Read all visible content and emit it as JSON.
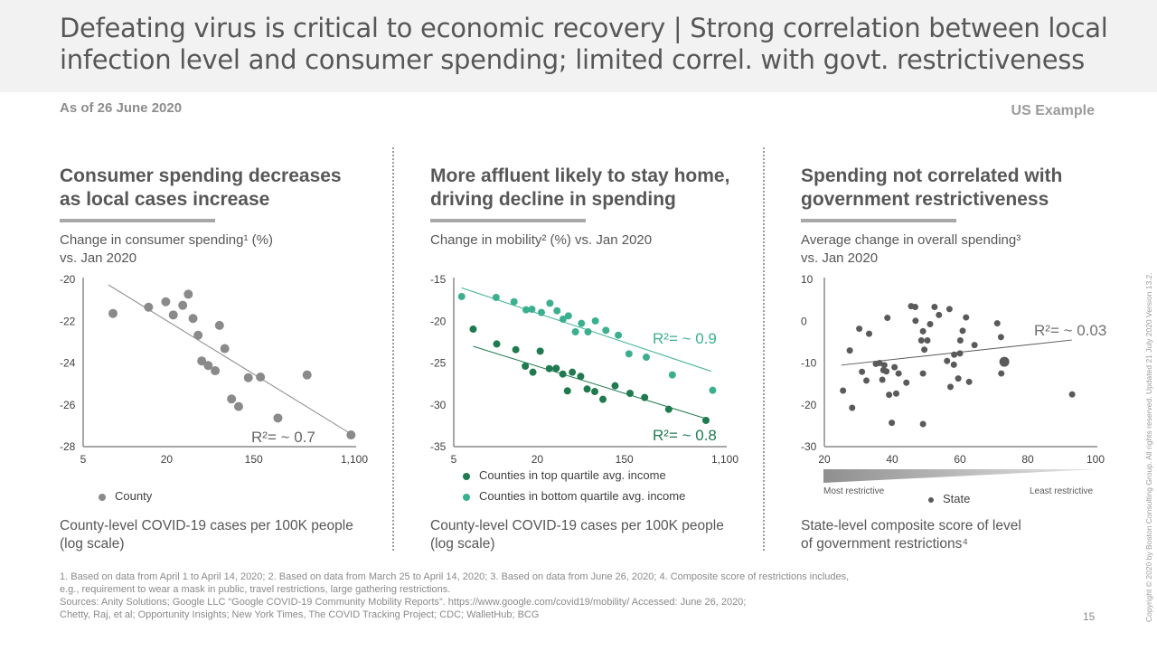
{
  "header": {
    "title_line1": "Defeating virus is critical to economic recovery | Strong correlation between local",
    "title_line2": "infection level and consumer spending; limited correl. with govt. restrictiveness",
    "as_of": "As of 26 June 2020",
    "tag": "US Example"
  },
  "columns": [
    {
      "title_line1": "Consumer spending decreases",
      "title_line2": "as local cases increase",
      "subtitle_line1": "Change in consumer spending¹ (%)",
      "subtitle_line2": "vs. Jan 2020",
      "xlabel_line1": "County-level COVID-19 cases per 100K people",
      "xlabel_line2": "(log scale)"
    },
    {
      "title_line1": "More affluent likely to stay home,",
      "title_line2": "driving decline in spending",
      "subtitle_line1": "Change in mobility² (%) vs. Jan 2020",
      "subtitle_line2": "",
      "xlabel_line1": "County-level COVID-19 cases per 100K people",
      "xlabel_line2": "(log scale)"
    },
    {
      "title_line1": "Spending not correlated with",
      "title_line2": "government restrictiveness",
      "subtitle_line1": "Average change in overall spending³",
      "subtitle_line2": "vs. Jan 2020",
      "xlabel_line1": "State-level composite score of level",
      "xlabel_line2": "of government restrictions⁴"
    }
  ],
  "restrictiveness_scale": {
    "left": "Most restrictive",
    "right": "Least restrictive"
  },
  "footnotes": [
    "1. Based on data from April 1 to April 14, 2020;  2. Based on data from March 25 to April 14, 2020;  3. Based on data from June 26, 2020;  4. Composite score of restrictions includes,",
    "e.g., requirement to wear a mask in public, travel restrictions, large gathering restrictions.",
    "Sources: Anity Solutions; Google LLC “Google COVID-19 Community Mobility Reports”. https://www.google.com/covid19/mobility/ Accessed: June 26, 2020;",
    "Chetty, Raj, et al; Opportunity Insights; New York Times, The COVID Tracking Project; CDC; WalletHub; BCG"
  ],
  "page_number": "15",
  "copyright": "Copyright © 2020 by Boston Consulting Group. All rights reserved. Updated 21 July 2020 Version 13.2.",
  "colors": {
    "grey_point": "#8a8a8a",
    "dark_green": "#1f7a4f",
    "light_teal": "#3bb08f",
    "state_point": "#5a5a5a",
    "header_bg": "#f2f2f2"
  },
  "chart_data": [
    {
      "type": "scatter",
      "title": "Consumer spending decreases as local cases increase",
      "xlabel": "County-level COVID-19 cases per 100K people (log scale)",
      "ylabel": "Change in consumer spending (%) vs. Jan 2020",
      "xscale": "log",
      "xticks": [
        5,
        20,
        150,
        1100
      ],
      "xtick_labels": [
        "5",
        "20",
        "150",
        "1,100"
      ],
      "yticks": [
        -20,
        -22,
        -24,
        -26,
        -28
      ],
      "ylim": [
        -28,
        -20
      ],
      "xlim": [
        5,
        1100
      ],
      "grid": false,
      "legend": {
        "placement": "bottom-left",
        "entries": [
          "County"
        ]
      },
      "annotation": "R²= ~ 0.7",
      "series": [
        {
          "name": "County",
          "color": "#8a8a8a",
          "points": [
            [
              8.2,
              -21.63
            ],
            [
              14.8,
              -21.33
            ],
            [
              19.7,
              -21.07
            ],
            [
              23.3,
              -21.7
            ],
            [
              29.0,
              -21.24
            ],
            [
              33.0,
              -20.71
            ],
            [
              36.8,
              -21.87
            ],
            [
              41.4,
              -22.67
            ],
            [
              67.9,
              -22.2
            ],
            [
              45.0,
              -23.9
            ],
            [
              52.3,
              -24.12
            ],
            [
              61.5,
              -24.37
            ],
            [
              76.7,
              -23.31
            ],
            [
              89.8,
              -25.72
            ],
            [
              105.7,
              -26.08
            ],
            [
              132.4,
              -24.7
            ],
            [
              171.4,
              -24.67
            ],
            [
              431.5,
              -24.57
            ],
            [
              242.1,
              -26.63
            ],
            [
              1030,
              -27.44
            ]
          ],
          "trend": [
            [
              7.6,
              -20.26
            ],
            [
              1002,
              -27.35
            ]
          ]
        }
      ]
    },
    {
      "type": "scatter",
      "title": "More affluent likely to stay home, driving decline in spending",
      "xlabel": "County-level COVID-19 cases per 100K people (log scale)",
      "ylabel": "Change in mobility (%) vs. Jan 2020",
      "xscale": "log",
      "xticks": [
        5,
        20,
        150,
        1100
      ],
      "xtick_labels": [
        "5",
        "20",
        "150",
        "1,100"
      ],
      "yticks": [
        -15,
        -20,
        -25,
        -30,
        -35
      ],
      "ylim": [
        -35,
        -15
      ],
      "xlim": [
        5,
        1100
      ],
      "grid": false,
      "legend": {
        "placement": "bottom-left",
        "entries": [
          "Counties in top quartile avg. income",
          "Counties in bottom quartile avg. income"
        ]
      },
      "series": [
        {
          "name": "Counties in top quartile avg. income",
          "color": "#1f7a4f",
          "annotation": "R²= ~ 0.8",
          "points": [
            [
              6.9,
              -20.95
            ],
            [
              10.2,
              -22.72
            ],
            [
              14.0,
              -23.4
            ],
            [
              21.4,
              -23.58
            ],
            [
              16.4,
              -25.38
            ],
            [
              18.6,
              -26.1
            ],
            [
              26.4,
              -25.67
            ],
            [
              31.0,
              -25.63
            ],
            [
              36.1,
              -26.32
            ],
            [
              40.2,
              -28.33
            ],
            [
              45.0,
              -26.1
            ],
            [
              54.6,
              -26.6
            ],
            [
              63.4,
              -28.11
            ],
            [
              75.7,
              -28.41
            ],
            [
              91.4,
              -29.34
            ],
            [
              121.1,
              -27.72
            ],
            [
              167.9,
              -28.62
            ],
            [
              224.4,
              -29.12
            ],
            [
              361.4,
              -30.53
            ],
            [
              755.1,
              -31.86
            ]
          ],
          "trend": [
            [
              6.9,
              -23.0
            ],
            [
              755,
              -31.65
            ]
          ]
        },
        {
          "name": "Counties in bottom quartile avg. income",
          "color": "#3bb08f",
          "annotation": "R²= ~ 0.9",
          "points": [
            [
              5.7,
              -17.05
            ],
            [
              10.1,
              -17.16
            ],
            [
              13.6,
              -17.67
            ],
            [
              16.6,
              -18.64
            ],
            [
              18.3,
              -18.57
            ],
            [
              22.0,
              -18.96
            ],
            [
              26.8,
              -17.85
            ],
            [
              31.6,
              -18.75
            ],
            [
              36.3,
              -19.76
            ],
            [
              41.1,
              -19.36
            ],
            [
              48.4,
              -21.27
            ],
            [
              55.6,
              -20.26
            ],
            [
              64.7,
              -21.27
            ],
            [
              76.7,
              -19.97
            ],
            [
              97.9,
              -21.09
            ],
            [
              130.6,
              -21.67
            ],
            [
              164.4,
              -23.9
            ],
            [
              231.7,
              -24.3
            ],
            [
              388.2,
              -26.42
            ],
            [
              862.9,
              -28.26
            ]
          ],
          "trend": [
            [
              5.7,
              -16.01
            ],
            [
              839.5,
              -25.99
            ]
          ]
        }
      ]
    },
    {
      "type": "scatter",
      "title": "Spending not correlated with government restrictiveness",
      "xlabel": "State-level composite score of level of government restrictions",
      "ylabel": "Average change in overall spending vs. Jan 2020",
      "xscale": "linear",
      "xticks": [
        20,
        40,
        60,
        80,
        100
      ],
      "xtick_labels": [
        "20",
        "40",
        "60",
        "80",
        "100"
      ],
      "yticks": [
        10,
        0,
        -10,
        -20,
        -30
      ],
      "ylim": [
        -30,
        10
      ],
      "xlim": [
        20,
        100
      ],
      "grid": false,
      "legend": {
        "placement": "bottom-center",
        "entries": [
          "State"
        ]
      },
      "annotation": "R²= ~ 0.03",
      "series": [
        {
          "name": "State",
          "color": "#5a5a5a",
          "points": [
            [
              25.5,
              -16.6
            ],
            [
              27.5,
              -7.0
            ],
            [
              28.2,
              -20.7
            ],
            [
              30.3,
              -1.8
            ],
            [
              31.1,
              -12.1
            ],
            [
              32.4,
              -14.2
            ],
            [
              33.2,
              -3.0
            ],
            [
              35.2,
              -10.2
            ],
            [
              36.3,
              -10.0
            ],
            [
              37.1,
              -14.0
            ],
            [
              37.7,
              -10.5
            ],
            [
              37.4,
              -11.7
            ],
            [
              38.3,
              -12.0
            ],
            [
              38.6,
              0.8
            ],
            [
              39.1,
              -17.6
            ],
            [
              39.9,
              -24.3
            ],
            [
              40.7,
              -11.0
            ],
            [
              41.2,
              -17.3
            ],
            [
              41.9,
              -12.5
            ],
            [
              44.2,
              -14.7
            ],
            [
              45.6,
              3.6
            ],
            [
              46.8,
              3.4
            ],
            [
              46.9,
              0.1
            ],
            [
              48.6,
              -4.6
            ],
            [
              49.1,
              -2.4
            ],
            [
              49.1,
              -12.5
            ],
            [
              49.1,
              -24.6
            ],
            [
              49.5,
              -6.8
            ],
            [
              50.4,
              -4.6
            ],
            [
              51.2,
              -0.7
            ],
            [
              52.5,
              3.4
            ],
            [
              53.8,
              1.5
            ],
            [
              56.2,
              -9.5
            ],
            [
              56.9,
              2.9
            ],
            [
              57.2,
              -15.7
            ],
            [
              58.2,
              -10.4
            ],
            [
              58.3,
              -8.0
            ],
            [
              59.5,
              -13.7
            ],
            [
              60.0,
              -7.7
            ],
            [
              60.1,
              -4.6
            ],
            [
              60.8,
              -2.3
            ],
            [
              61.8,
              0.9
            ],
            [
              62.7,
              -14.5
            ],
            [
              64.3,
              -5.7
            ],
            [
              71.0,
              -0.5
            ],
            [
              72.1,
              -3.8
            ],
            [
              72.2,
              -12.5
            ],
            [
              73.1,
              -9.7
            ],
            [
              93.1,
              -17.5
            ]
          ],
          "trend": [
            [
              25,
              -10.5
            ],
            [
              93,
              -4.5
            ]
          ]
        }
      ]
    }
  ]
}
